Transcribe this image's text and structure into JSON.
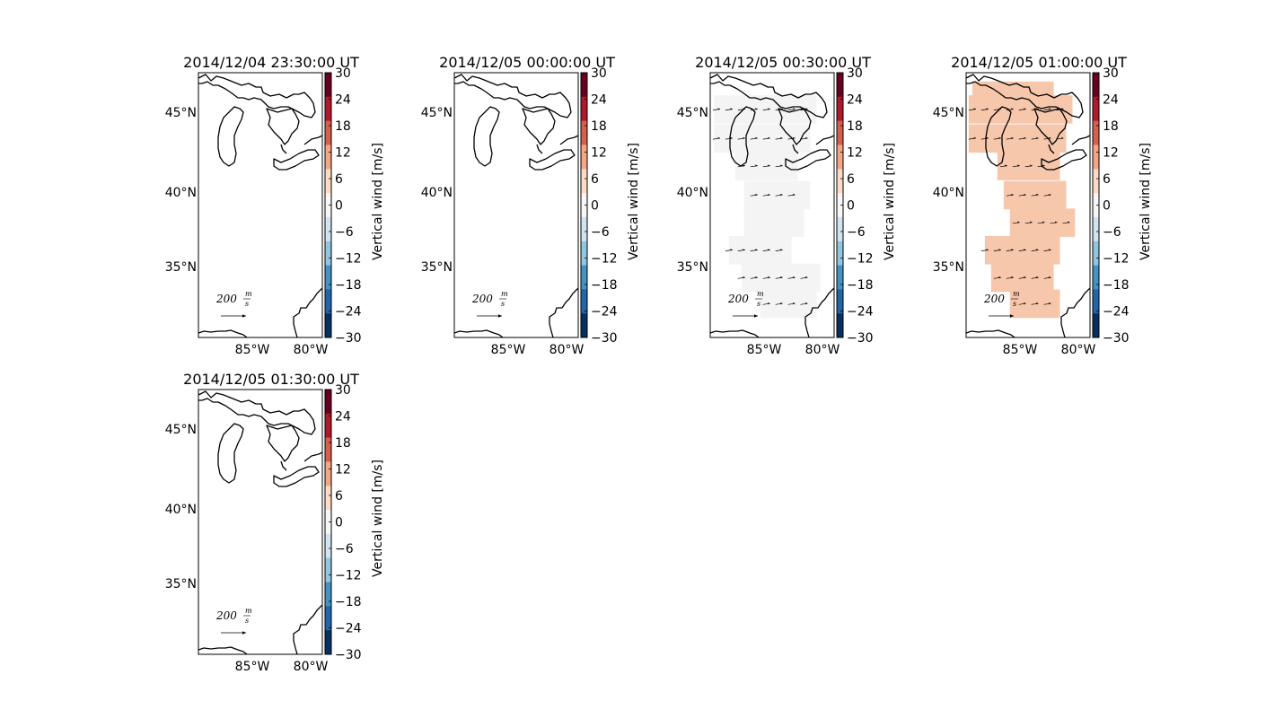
{
  "chart_data": {
    "type": "heatmap",
    "colorbar": {
      "label": "Vertical wind [m/s]",
      "ticks": [
        "30",
        "24",
        "18",
        "12",
        "6",
        "0",
        "−6",
        "−12",
        "−18",
        "−24",
        "−30"
      ],
      "range": [
        -30,
        30
      ],
      "colormap": [
        "#67001f",
        "#b2182b",
        "#d6604d",
        "#f4a582",
        "#fddbc7",
        "#f7f7f7",
        "#d1e5f0",
        "#92c5de",
        "#4393c3",
        "#2166ac",
        "#053061"
      ]
    },
    "lat_ticks": [
      "45°N",
      "40°N",
      "35°N"
    ],
    "lon_ticks": [
      "85°W",
      "80°W"
    ],
    "lat_range": [
      30.2,
      47.5
    ],
    "lon_range": [
      -89.5,
      -79.6
    ],
    "reference_vector": {
      "magnitude": 200,
      "label_value": "200",
      "label_num": "m",
      "label_den": "s"
    },
    "panels": [
      {
        "title": "2014/12/04 23:30:00 UT",
        "fill_color": null,
        "wind_value": null,
        "wind_rows": []
      },
      {
        "title": "2014/12/05 00:00:00 UT",
        "fill_color": null,
        "wind_value": null,
        "wind_rows": []
      },
      {
        "title": "2014/12/05 00:30:00 UT",
        "fill_color": "#f4f4f4",
        "wind_value": 0,
        "region_rows": [
          {
            "lat": 45.1,
            "lon": [
              -89.2,
              -81.0
            ]
          },
          {
            "lat": 43.2,
            "lon": [
              -89.2,
              -81.5
            ]
          },
          {
            "lat": 41.4,
            "lon": [
              -87.5,
              -82.5
            ]
          },
          {
            "lat": 39.5,
            "lon": [
              -86.8,
              -81.5
            ]
          },
          {
            "lat": 37.7,
            "lon": [
              -86.8,
              -82.0
            ]
          },
          {
            "lat": 35.9,
            "lon": [
              -88.0,
              -83.0
            ]
          },
          {
            "lat": 34.1,
            "lon": [
              -87.0,
              -80.7
            ]
          },
          {
            "lat": 32.4,
            "lon": [
              -85.5,
              -81.0
            ]
          }
        ],
        "wind_rows": [
          {
            "lat": 45.1,
            "lons": [
              -89.0,
              -88.0,
              -87.0,
              -86.0,
              -85.0,
              -84.0,
              -83.0,
              -82.0
            ]
          },
          {
            "lat": 43.2,
            "lons": [
              -89.0,
              -88.0,
              -87.0,
              -86.0,
              -85.0,
              -84.0,
              -83.0,
              -82.0
            ]
          },
          {
            "lat": 41.4,
            "lons": [
              -87.0,
              -86.0,
              -85.0,
              -84.0
            ]
          },
          {
            "lat": 39.5,
            "lons": [
              -86.0,
              -85.0,
              -84.0,
              -83.0
            ]
          },
          {
            "lat": 35.9,
            "lons": [
              -88.0,
              -87.0,
              -86.0,
              -85.0,
              -84.0
            ]
          },
          {
            "lat": 34.1,
            "lons": [
              -87.0,
              -86.0,
              -85.0,
              -84.0,
              -83.0,
              -82.0
            ]
          },
          {
            "lat": 32.4,
            "lons": [
              -85.0,
              -84.0,
              -83.0,
              -82.0
            ]
          }
        ]
      },
      {
        "title": "2014/12/05 01:00:00 UT",
        "fill_color": "#f7c7ac",
        "wind_value": 7,
        "region_rows": [
          {
            "lat": 46.0,
            "lon": [
              -89.0,
              -82.5
            ]
          },
          {
            "lat": 45.1,
            "lon": [
              -89.3,
              -81.0
            ]
          },
          {
            "lat": 43.2,
            "lon": [
              -89.3,
              -81.5
            ]
          },
          {
            "lat": 41.4,
            "lon": [
              -87.0,
              -82.0
            ]
          },
          {
            "lat": 39.5,
            "lon": [
              -86.5,
              -81.5
            ]
          },
          {
            "lat": 37.7,
            "lon": [
              -86.0,
              -80.8
            ]
          },
          {
            "lat": 35.9,
            "lon": [
              -88.0,
              -82.0
            ]
          },
          {
            "lat": 34.1,
            "lon": [
              -87.5,
              -82.5
            ]
          },
          {
            "lat": 32.4,
            "lon": [
              -86.0,
              -82.0
            ]
          }
        ],
        "wind_rows": [
          {
            "lat": 45.1,
            "lons": [
              -89.0,
              -88.0,
              -87.0,
              -86.0,
              -85.0,
              -84.0,
              -83.0,
              -82.0
            ]
          },
          {
            "lat": 43.2,
            "lons": [
              -89.0,
              -88.0,
              -87.0,
              -86.0,
              -85.0,
              -84.0,
              -83.0,
              -82.0
            ]
          },
          {
            "lat": 41.4,
            "lons": [
              -86.5,
              -85.5,
              -84.5,
              -83.5
            ]
          },
          {
            "lat": 39.5,
            "lons": [
              -86.0,
              -85.0,
              -84.0,
              -83.0
            ]
          },
          {
            "lat": 37.7,
            "lons": [
              -85.5,
              -84.5,
              -83.5,
              -82.5,
              -81.5
            ]
          },
          {
            "lat": 35.9,
            "lons": [
              -88.0,
              -87.0,
              -86.0,
              -85.0,
              -84.0,
              -83.0
            ]
          },
          {
            "lat": 34.1,
            "lons": [
              -87.0,
              -86.0,
              -85.0,
              -84.0,
              -83.0
            ]
          },
          {
            "lat": 32.4,
            "lons": [
              -85.0,
              -84.0,
              -83.0
            ]
          }
        ]
      },
      {
        "title": "2014/12/05 01:30:00 UT",
        "fill_color": null,
        "wind_value": null,
        "wind_rows": []
      }
    ]
  }
}
